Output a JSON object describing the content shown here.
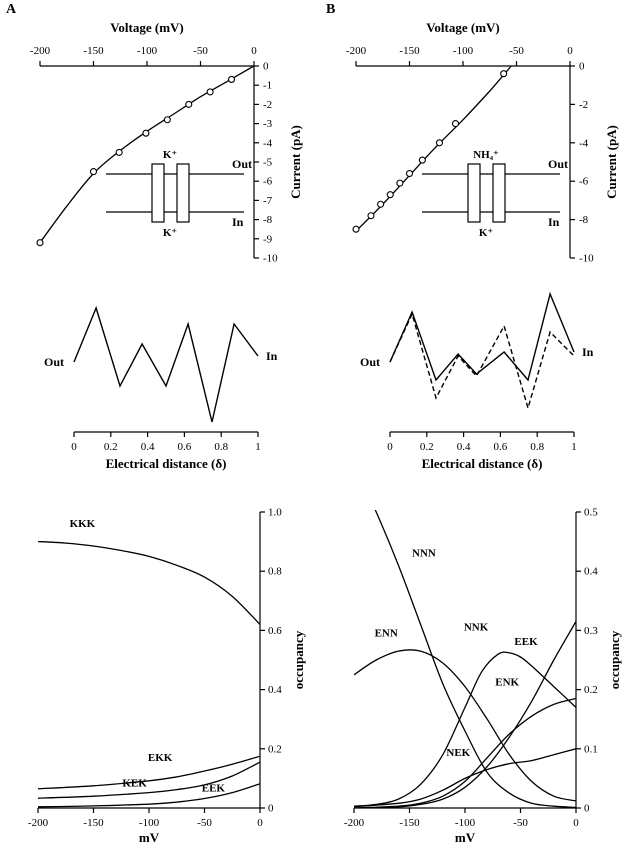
{
  "figure": {
    "panel_a_label": "A",
    "panel_b_label": "B"
  },
  "chart_data": [
    {
      "id": "a_iv",
      "kind": "iv",
      "type": "scatter",
      "title": "Voltage (mV)",
      "ylabel": "Current (pA)",
      "xlim": [
        -200,
        0
      ],
      "ylim": [
        -10,
        0
      ],
      "x_ticks": [
        -200,
        -150,
        -100,
        -50,
        0
      ],
      "x_tick_labels": [
        "-200",
        "-150",
        "-100",
        "-50",
        "0"
      ],
      "y_ticks": [
        0,
        -1,
        -2,
        -3,
        -4,
        -5,
        -6,
        -7,
        -8,
        -9,
        -10
      ],
      "y_tick_labels": [
        "0",
        "-1",
        "-2",
        "-3",
        "-4",
        "-5",
        "-6",
        "-7",
        "-8",
        "-9",
        "-10"
      ],
      "curve": [
        [
          -200,
          -9.2
        ],
        [
          -175,
          -7.3
        ],
        [
          -150,
          -5.6
        ],
        [
          -125,
          -4.4
        ],
        [
          -100,
          -3.4
        ],
        [
          -75,
          -2.5
        ],
        [
          -50,
          -1.6
        ],
        [
          -25,
          -0.8
        ],
        [
          0,
          0
        ]
      ],
      "points": [
        [
          -200,
          -9.2
        ],
        [
          -150,
          -5.5
        ],
        [
          -126,
          -4.5
        ],
        [
          -101,
          -3.5
        ],
        [
          -81,
          -2.8
        ],
        [
          -61,
          -2.0
        ],
        [
          -41,
          -1.35
        ],
        [
          -21,
          -0.7
        ]
      ],
      "inset": {
        "top_ion": "K⁺",
        "bottom_ion": "K⁺",
        "out_label": "Out",
        "in_label": "In"
      }
    },
    {
      "id": "b_iv",
      "kind": "iv",
      "type": "scatter",
      "title": "Voltage (mV)",
      "ylabel": "Current (pA)",
      "xlim": [
        -200,
        0
      ],
      "ylim": [
        -10,
        0
      ],
      "x_ticks": [
        -200,
        -150,
        -100,
        -50,
        0
      ],
      "x_tick_labels": [
        "-200",
        "-150",
        "-100",
        "-50",
        "0"
      ],
      "y_ticks": [
        0,
        -2,
        -4,
        -6,
        -8,
        -10
      ],
      "y_tick_labels": [
        "0",
        "-2",
        "-4",
        "-6",
        "-8",
        "-10"
      ],
      "curve": [
        [
          -200,
          -8.6
        ],
        [
          -175,
          -7.2
        ],
        [
          -150,
          -5.7
        ],
        [
          -125,
          -4.2
        ],
        [
          -100,
          -2.8
        ],
        [
          -75,
          -1.3
        ],
        [
          -55,
          0
        ]
      ],
      "points": [
        [
          -200,
          -8.5
        ],
        [
          -186,
          -7.8
        ],
        [
          -177,
          -7.2
        ],
        [
          -168,
          -6.7
        ],
        [
          -159,
          -6.1
        ],
        [
          -150,
          -5.6
        ],
        [
          -138,
          -4.9
        ],
        [
          -122,
          -4.0
        ],
        [
          -107,
          -3.0
        ],
        [
          -62,
          -0.4
        ]
      ],
      "inset": {
        "top_ion": "NH₄⁺",
        "bottom_ion": "K⁺",
        "out_label": "Out",
        "in_label": "In"
      }
    },
    {
      "id": "a_profile",
      "kind": "profile",
      "type": "line",
      "xlabel": "Electrical distance (δ)",
      "out_label": "Out",
      "in_label": "In",
      "energy_range": [
        -3.3,
        3.5
      ],
      "x_ticks": [
        0,
        0.2,
        0.4,
        0.6,
        0.8,
        1
      ],
      "x_tick_labels": [
        "0",
        "0.2",
        "0.4",
        "0.6",
        "0.8",
        "1"
      ],
      "series": [
        {
          "style": "solid",
          "points": [
            [
              0,
              0
            ],
            [
              0.12,
              2.7
            ],
            [
              0.25,
              -1.2
            ],
            [
              0.37,
              0.9
            ],
            [
              0.5,
              -1.2
            ],
            [
              0.62,
              1.9
            ],
            [
              0.75,
              -3.0
            ],
            [
              0.87,
              1.9
            ],
            [
              1,
              0.3
            ]
          ]
        }
      ]
    },
    {
      "id": "b_profile",
      "kind": "profile",
      "type": "line",
      "xlabel": "Electrical distance (δ)",
      "out_label": "Out",
      "in_label": "In",
      "energy_range": [
        -3.3,
        3.5
      ],
      "x_ticks": [
        0,
        0.2,
        0.4,
        0.6,
        0.8,
        1
      ],
      "x_tick_labels": [
        "0",
        "0.2",
        "0.4",
        "0.6",
        "0.8",
        "1"
      ],
      "series": [
        {
          "style": "solid",
          "points": [
            [
              0,
              0
            ],
            [
              0.12,
              2.5
            ],
            [
              0.25,
              -0.9
            ],
            [
              0.37,
              0.4
            ],
            [
              0.47,
              -0.6
            ],
            [
              0.62,
              0.5
            ],
            [
              0.75,
              -0.9
            ],
            [
              0.87,
              3.4
            ],
            [
              1,
              0.5
            ]
          ]
        },
        {
          "style": "dashed",
          "points": [
            [
              0,
              0
            ],
            [
              0.12,
              2.4
            ],
            [
              0.25,
              -1.8
            ],
            [
              0.37,
              0.3
            ],
            [
              0.47,
              -0.7
            ],
            [
              0.62,
              1.8
            ],
            [
              0.75,
              -2.3
            ],
            [
              0.87,
              1.5
            ],
            [
              1,
              0.3
            ]
          ]
        }
      ]
    },
    {
      "id": "a_occupancy",
      "kind": "occupancy",
      "type": "line",
      "xlabel": "mV",
      "ylabel": "occupancy",
      "xlim": [
        -200,
        0
      ],
      "ylim": [
        0,
        1.0
      ],
      "x_ticks": [
        -200,
        -150,
        -100,
        -50,
        0
      ],
      "x_tick_labels": [
        "-200",
        "-150",
        "-100",
        "-50",
        "0"
      ],
      "y_ticks": [
        0,
        0.2,
        0.4,
        0.6,
        0.8,
        1.0
      ],
      "y_tick_labels": [
        "0",
        "0.2",
        "0.4",
        "0.6",
        "0.8",
        "1.0"
      ],
      "series": [
        {
          "name": "KKK",
          "label_at": [
            -160,
            0.95
          ],
          "points": [
            [
              -200,
              0.9
            ],
            [
              -175,
              0.895
            ],
            [
              -150,
              0.885
            ],
            [
              -125,
              0.87
            ],
            [
              -100,
              0.85
            ],
            [
              -75,
              0.82
            ],
            [
              -50,
              0.78
            ],
            [
              -25,
              0.715
            ],
            [
              0,
              0.62
            ]
          ]
        },
        {
          "name": "EKK",
          "label_at": [
            -90,
            0.158
          ],
          "points": [
            [
              -200,
              0.065
            ],
            [
              -150,
              0.075
            ],
            [
              -100,
              0.092
            ],
            [
              -75,
              0.105
            ],
            [
              -50,
              0.125
            ],
            [
              -25,
              0.148
            ],
            [
              0,
              0.175
            ]
          ]
        },
        {
          "name": "KEK",
          "label_at": [
            -113,
            0.072
          ],
          "points": [
            [
              -200,
              0.033
            ],
            [
              -150,
              0.04
            ],
            [
              -100,
              0.052
            ],
            [
              -75,
              0.062
            ],
            [
              -50,
              0.078
            ],
            [
              -25,
              0.108
            ],
            [
              0,
              0.155
            ]
          ]
        },
        {
          "name": "EEK",
          "label_at": [
            -42,
            0.055
          ],
          "points": [
            [
              -200,
              0.004
            ],
            [
              -150,
              0.007
            ],
            [
              -100,
              0.013
            ],
            [
              -75,
              0.02
            ],
            [
              -50,
              0.032
            ],
            [
              -25,
              0.052
            ],
            [
              0,
              0.082
            ]
          ]
        }
      ]
    },
    {
      "id": "b_occupancy",
      "kind": "occupancy",
      "type": "line",
      "xlabel": "mV",
      "ylabel": "occupancy",
      "xlim": [
        -200,
        0
      ],
      "ylim": [
        0,
        0.5
      ],
      "x_ticks": [
        -200,
        -150,
        -100,
        -50,
        0
      ],
      "x_tick_labels": [
        "-200",
        "-150",
        "-100",
        "-50",
        "0"
      ],
      "y_ticks": [
        0,
        0.1,
        0.2,
        0.3,
        0.4,
        0.5
      ],
      "y_tick_labels": [
        "0",
        "0.1",
        "0.2",
        "0.3",
        "0.4",
        "0.5"
      ],
      "series": [
        {
          "name": "NNN",
          "label_at": [
            -137,
            0.425
          ],
          "points": [
            [
              -200,
              0.58
            ],
            [
              -180,
              0.5
            ],
            [
              -160,
              0.41
            ],
            [
              -140,
              0.31
            ],
            [
              -120,
              0.21
            ],
            [
              -100,
              0.13
            ],
            [
              -80,
              0.06
            ],
            [
              -60,
              0.025
            ],
            [
              -40,
              0.008
            ],
            [
              -20,
              0.003
            ],
            [
              0,
              0.001
            ]
          ]
        },
        {
          "name": "ENN",
          "label_at": [
            -171,
            0.29
          ],
          "points": [
            [
              -200,
              0.225
            ],
            [
              -180,
              0.25
            ],
            [
              -160,
              0.265
            ],
            [
              -140,
              0.265
            ],
            [
              -120,
              0.245
            ],
            [
              -100,
              0.205
            ],
            [
              -80,
              0.15
            ],
            [
              -60,
              0.09
            ],
            [
              -40,
              0.045
            ],
            [
              -20,
              0.02
            ],
            [
              0,
              0.012
            ]
          ]
        },
        {
          "name": "NNK",
          "label_at": [
            -90,
            0.3
          ],
          "points": [
            [
              -200,
              0.003
            ],
            [
              -180,
              0.006
            ],
            [
              -160,
              0.015
            ],
            [
              -140,
              0.04
            ],
            [
              -120,
              0.09
            ],
            [
              -100,
              0.17
            ],
            [
              -85,
              0.23
            ],
            [
              -70,
              0.26
            ],
            [
              -60,
              0.262
            ],
            [
              -50,
              0.255
            ],
            [
              -40,
              0.24
            ],
            [
              -20,
              0.205
            ],
            [
              0,
              0.17
            ]
          ]
        },
        {
          "name": "EEK",
          "label_at": [
            -45,
            0.275
          ],
          "points": [
            [
              -200,
              0.0
            ],
            [
              -160,
              0.002
            ],
            [
              -140,
              0.006
            ],
            [
              -120,
              0.015
            ],
            [
              -100,
              0.035
            ],
            [
              -80,
              0.07
            ],
            [
              -60,
              0.12
            ],
            [
              -40,
              0.18
            ],
            [
              -20,
              0.25
            ],
            [
              0,
              0.315
            ]
          ]
        },
        {
          "name": "ENK",
          "label_at": [
            -62,
            0.207
          ],
          "points": [
            [
              -200,
              0.0
            ],
            [
              -160,
              0.003
            ],
            [
              -140,
              0.008
            ],
            [
              -120,
              0.02
            ],
            [
              -100,
              0.045
            ],
            [
              -80,
              0.085
            ],
            [
              -60,
              0.125
            ],
            [
              -40,
              0.155
            ],
            [
              -20,
              0.175
            ],
            [
              0,
              0.185
            ]
          ]
        },
        {
          "name": "NEK",
          "label_at": [
            -106,
            0.088
          ],
          "points": [
            [
              -200,
              0.002
            ],
            [
              -160,
              0.008
            ],
            [
              -140,
              0.015
            ],
            [
              -120,
              0.03
            ],
            [
              -100,
              0.05
            ],
            [
              -80,
              0.065
            ],
            [
              -60,
              0.075
            ],
            [
              -40,
              0.08
            ],
            [
              -20,
              0.09
            ],
            [
              0,
              0.1
            ]
          ]
        }
      ]
    }
  ]
}
